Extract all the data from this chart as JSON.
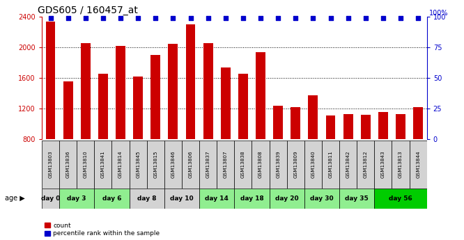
{
  "title": "GDS605 / 160457_at",
  "samples": [
    "GSM13803",
    "GSM13836",
    "GSM13810",
    "GSM13841",
    "GSM13814",
    "GSM13845",
    "GSM13815",
    "GSM13846",
    "GSM13806",
    "GSM13837",
    "GSM13807",
    "GSM13838",
    "GSM13808",
    "GSM13839",
    "GSM13809",
    "GSM13840",
    "GSM13811",
    "GSM13842",
    "GSM13812",
    "GSM13843",
    "GSM13813",
    "GSM13844"
  ],
  "counts": [
    2340,
    1560,
    2060,
    1660,
    2020,
    1620,
    1900,
    2050,
    2300,
    2060,
    1740,
    1660,
    1940,
    1240,
    1220,
    1370,
    1110,
    1130,
    1120,
    1155,
    1130,
    1220
  ],
  "percentile": [
    99,
    99,
    99,
    99,
    99,
    99,
    99,
    99,
    99,
    99,
    99,
    99,
    99,
    99,
    99,
    99,
    99,
    99,
    99,
    99,
    99,
    99
  ],
  "age_groups": [
    {
      "label": "day 0",
      "start": 0,
      "end": 1,
      "color": "#d3d3d3"
    },
    {
      "label": "day 3",
      "start": 1,
      "end": 3,
      "color": "#90ee90"
    },
    {
      "label": "day 6",
      "start": 3,
      "end": 5,
      "color": "#90ee90"
    },
    {
      "label": "day 8",
      "start": 5,
      "end": 7,
      "color": "#d3d3d3"
    },
    {
      "label": "day 10",
      "start": 7,
      "end": 9,
      "color": "#d3d3d3"
    },
    {
      "label": "day 14",
      "start": 9,
      "end": 11,
      "color": "#90ee90"
    },
    {
      "label": "day 18",
      "start": 11,
      "end": 13,
      "color": "#90ee90"
    },
    {
      "label": "day 20",
      "start": 13,
      "end": 15,
      "color": "#90ee90"
    },
    {
      "label": "day 30",
      "start": 15,
      "end": 17,
      "color": "#90ee90"
    },
    {
      "label": "day 35",
      "start": 17,
      "end": 19,
      "color": "#90ee90"
    },
    {
      "label": "day 56",
      "start": 19,
      "end": 22,
      "color": "#00cc00"
    }
  ],
  "bar_color": "#cc0000",
  "percentile_color": "#0000cc",
  "ylim_left": [
    800,
    2400
  ],
  "ylim_right": [
    0,
    100
  ],
  "yticks_left": [
    800,
    1200,
    1600,
    2000,
    2400
  ],
  "yticks_right": [
    0,
    25,
    50,
    75,
    100
  ],
  "gridlines": [
    1200,
    1600,
    2000
  ],
  "legend_count_label": "count",
  "legend_pct_label": "percentile rank within the sample",
  "sample_bg_color": "#d3d3d3",
  "title_fontsize": 10,
  "tick_fontsize": 7,
  "label_fontsize": 7
}
